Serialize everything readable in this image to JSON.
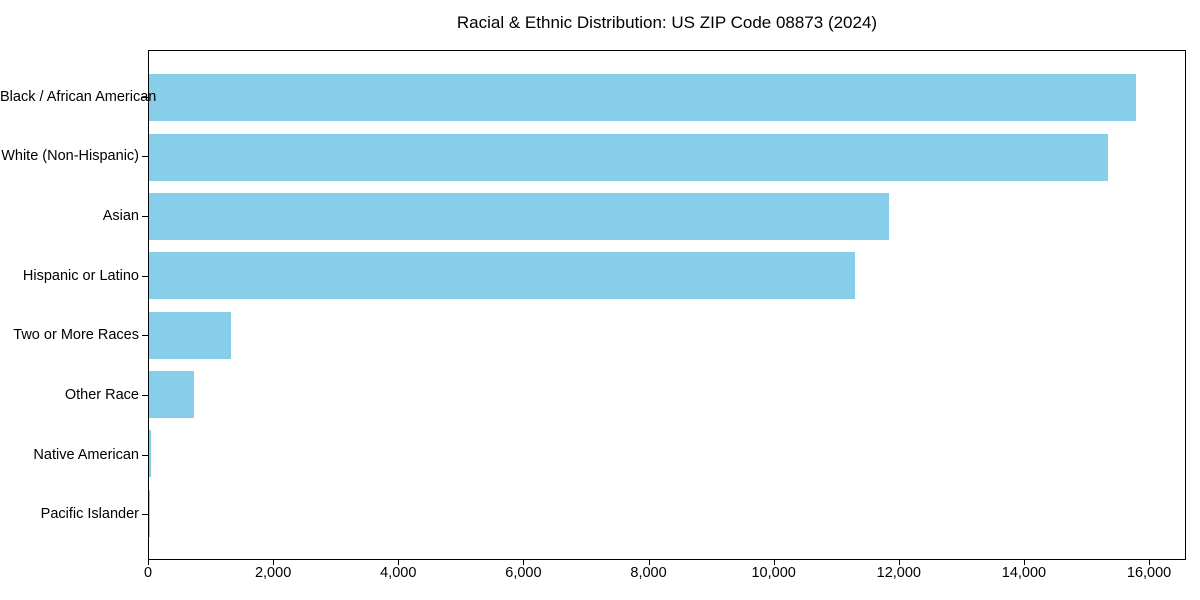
{
  "title": "Racial & Ethnic Distribution: US ZIP Code 08873 (2024)",
  "chart_data": {
    "type": "bar",
    "orientation": "horizontal",
    "title": "Racial & Ethnic Distribution: US ZIP Code 08873 (2024)",
    "categories": [
      "Black / African American",
      "White (Non-Hispanic)",
      "Asian",
      "Hispanic or Latino",
      "Two or More Races",
      "Other Race",
      "Native American",
      "Pacific Islander"
    ],
    "values": [
      15800,
      15350,
      11850,
      11300,
      1310,
      720,
      40,
      15
    ],
    "xlabel": "",
    "ylabel": "",
    "xlim": [
      0,
      16590
    ],
    "x_ticks": [
      0,
      2000,
      4000,
      6000,
      8000,
      10000,
      12000,
      14000,
      16000
    ],
    "x_tick_labels": [
      "0",
      "2,000",
      "4,000",
      "6,000",
      "8,000",
      "10,000",
      "12,000",
      "14,000",
      "16,000"
    ],
    "bar_color": "#87CEEB",
    "grid": false,
    "legend": null
  }
}
